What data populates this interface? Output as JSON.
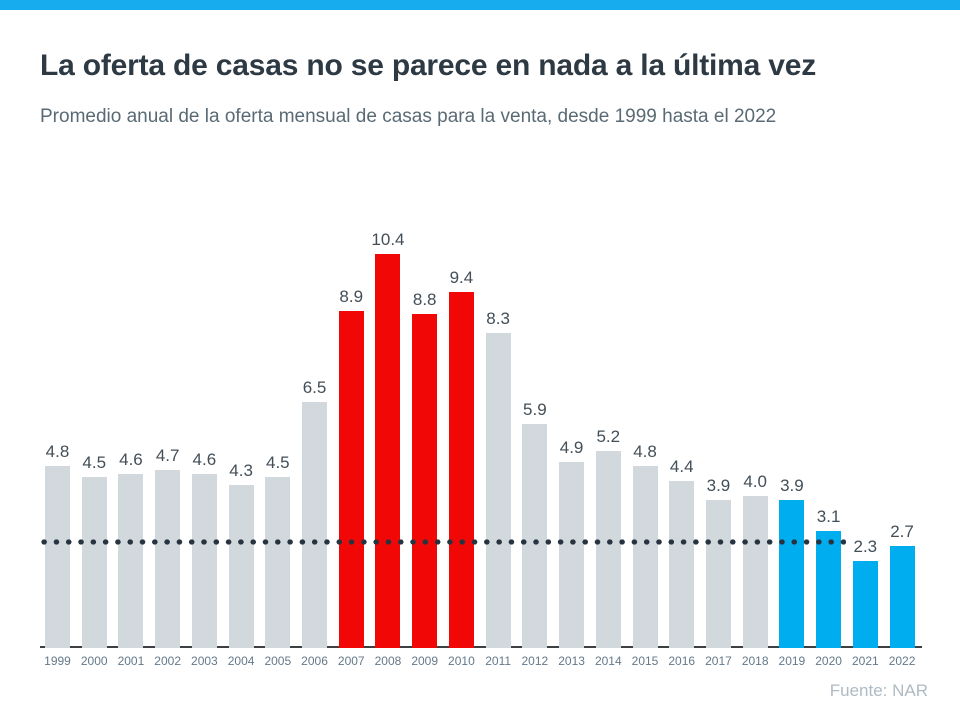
{
  "header": {
    "title": "La oferta de casas no se parece en nada a la última vez",
    "subtitle": "Promedio anual de la oferta mensual de casas para la venta, desde 1999 hasta el 2022"
  },
  "source": {
    "label": "Fuente: NAR"
  },
  "colors": {
    "accent_strip": "#17ACEE",
    "bar_gray": "#D7DCE0",
    "bar_red": "#F20707",
    "bar_blue": "#00ADEE",
    "dotted_line": "#27343F",
    "axis_line": "#3C4043",
    "title_text": "#2D3943",
    "subtitle_text": "#5A6A74",
    "value_text": "#434E57",
    "year_text": "#64798A",
    "source_text": "#AFBAC2"
  },
  "chart_data": {
    "type": "bar",
    "title": "La oferta de casas no se parece en nada a la última vez",
    "subtitle": "Promedio anual de la oferta mensual de casas para la venta, desde 1999 hasta el 2022",
    "xlabel": "",
    "ylabel": "",
    "ylim": [
      0,
      11
    ],
    "grid": false,
    "legend": false,
    "categories": [
      "1999",
      "2000",
      "2001",
      "2002",
      "2003",
      "2004",
      "2005",
      "2006",
      "2007",
      "2008",
      "2009",
      "2010",
      "2011",
      "2012",
      "2013",
      "2014",
      "2015",
      "2016",
      "2017",
      "2018",
      "2019",
      "2020",
      "2021",
      "2022"
    ],
    "values": [
      4.8,
      4.5,
      4.6,
      4.7,
      4.6,
      4.3,
      4.5,
      6.5,
      8.9,
      10.4,
      8.8,
      9.4,
      8.3,
      5.9,
      4.9,
      5.2,
      4.8,
      4.4,
      3.9,
      4.0,
      3.9,
      3.1,
      2.3,
      2.7
    ],
    "value_labels": [
      "4.8",
      "4.5",
      "4.6",
      "4.7",
      "4.6",
      "4.3",
      "4.5",
      "6.5",
      "8.9",
      "10.4",
      "8.8",
      "9.4",
      "8.3",
      "5.9",
      "4.9",
      "5.2",
      "4.8",
      "4.4",
      "3.9",
      "4.0",
      "3.9",
      "3.1",
      "2.3",
      "2.7"
    ],
    "groups": [
      "gray",
      "gray",
      "gray",
      "gray",
      "gray",
      "gray",
      "gray",
      "gray",
      "red",
      "red",
      "red",
      "red",
      "gray",
      "gray",
      "gray",
      "gray",
      "gray",
      "gray",
      "gray",
      "gray",
      "blue",
      "blue",
      "blue",
      "blue"
    ],
    "reference_line": {
      "value": 2.8,
      "style": "dotted",
      "extent_categories": [
        "1999",
        "2020"
      ]
    }
  }
}
